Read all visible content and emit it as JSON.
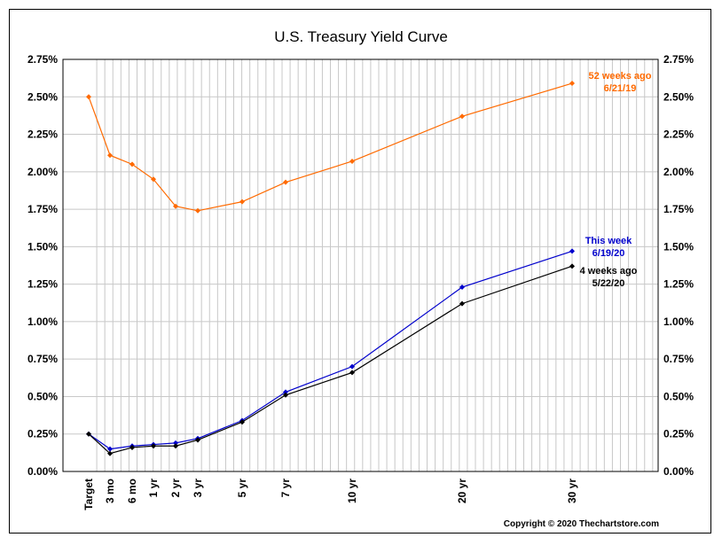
{
  "chart_data": {
    "type": "line",
    "title": "U.S. Treasury Yield Curve",
    "xlabel": "",
    "ylabel": "",
    "categories": [
      "Target",
      "3 mo",
      "6 mo",
      "1 yr",
      "2 yr",
      "3 yr",
      "5 yr",
      "7 yr",
      "10 yr",
      "20 yr",
      "30 yr"
    ],
    "x_positions_years": [
      0,
      0.25,
      0.5,
      1,
      2,
      3,
      5,
      7,
      10,
      20,
      30
    ],
    "ylim": [
      0,
      2.75
    ],
    "y_tick_step": 0.25,
    "y_tick_labels": [
      "0.00%",
      "0.25%",
      "0.50%",
      "0.75%",
      "1.00%",
      "1.25%",
      "1.50%",
      "1.75%",
      "2.00%",
      "2.25%",
      "2.50%",
      "2.75%"
    ],
    "grid": true,
    "series": [
      {
        "name": "52 weeks ago",
        "date": "6/21/19",
        "color": "#ff6a00",
        "values": [
          2.5,
          2.11,
          2.05,
          1.95,
          1.77,
          1.74,
          1.8,
          1.93,
          2.07,
          2.37,
          2.59
        ]
      },
      {
        "name": "This week",
        "date": "6/19/20",
        "color": "#0000cc",
        "values": [
          0.25,
          0.15,
          0.17,
          0.18,
          0.19,
          0.22,
          0.34,
          0.53,
          0.7,
          1.23,
          1.47
        ]
      },
      {
        "name": "4 weeks ago",
        "date": "5/22/20",
        "color": "#000000",
        "values": [
          0.25,
          0.12,
          0.16,
          0.17,
          0.17,
          0.21,
          0.33,
          0.51,
          0.66,
          1.12,
          1.37
        ]
      }
    ],
    "copyright": "Copyright © 2020 Thechartstore.com"
  }
}
